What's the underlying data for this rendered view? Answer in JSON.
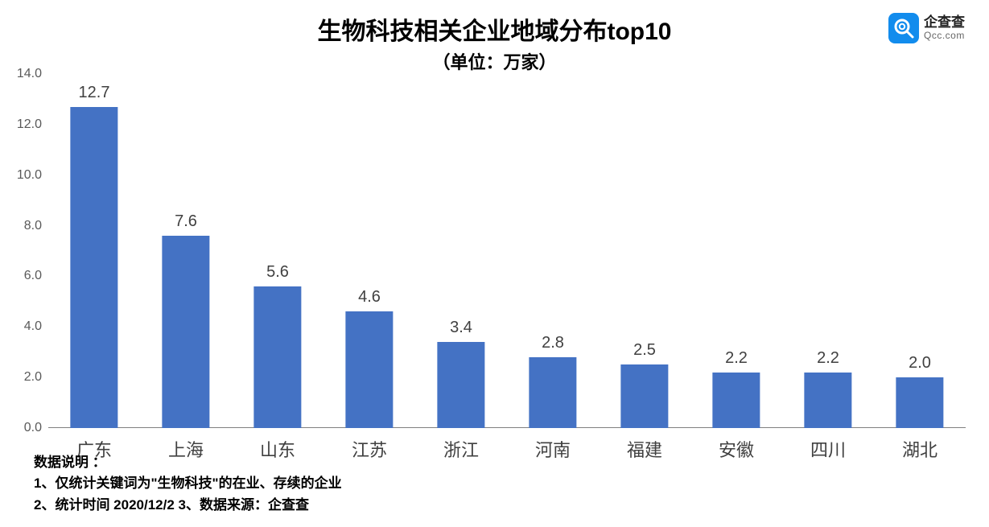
{
  "logo": {
    "icon_bg": "#128ced",
    "icon_fg": "#ffffff",
    "name": "企查查",
    "domain": "Qcc.com"
  },
  "chart": {
    "type": "bar",
    "title": "生物科技相关企业地域分布top10",
    "title_fontsize": 30,
    "subtitle": "（单位：万家）",
    "subtitle_fontsize": 22,
    "categories": [
      "广东",
      "上海",
      "山东",
      "江苏",
      "浙江",
      "河南",
      "福建",
      "安徽",
      "四川",
      "湖北"
    ],
    "values": [
      12.7,
      7.6,
      5.6,
      4.6,
      3.4,
      2.8,
      2.5,
      2.2,
      2.2,
      2.0
    ],
    "value_labels": [
      "12.7",
      "7.6",
      "5.6",
      "4.6",
      "3.4",
      "2.8",
      "2.5",
      "2.2",
      "2.2",
      "2.0"
    ],
    "bar_color": "#4472c4",
    "ylim": [
      0,
      14
    ],
    "ytick_step": 2,
    "ytick_labels": [
      "0.0",
      "2.0",
      "4.0",
      "6.0",
      "8.0",
      "10.0",
      "12.0",
      "14.0"
    ],
    "bar_width_pct": 52,
    "background_color": "#ffffff",
    "axis_color": "#808080",
    "tick_label_color": "#595959",
    "cat_label_fontsize": 22,
    "value_label_fontsize": 20,
    "tick_label_fontsize": 16
  },
  "notes": {
    "heading": "数据说明 ：",
    "line1": "1、仅统计关键词为\"生物科技\"的在业、存续的企业",
    "line2": "2、统计时间 2020/12/2   3、数据来源：企查查",
    "fontsize": 17
  }
}
